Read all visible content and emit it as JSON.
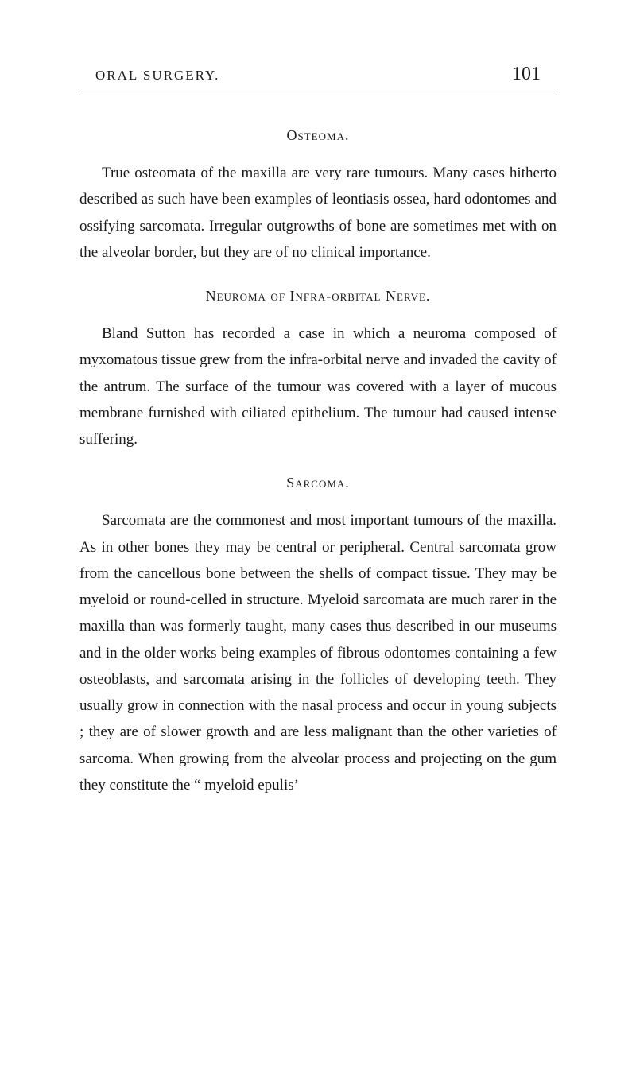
{
  "page": {
    "running_title": "ORAL SURGERY.",
    "page_number": "101"
  },
  "sections": {
    "s1": {
      "heading": "Osteoma.",
      "para1": "True osteomata of the maxilla are very rare tumours. Many cases hitherto described as such have been examples of leontiasis ossea, hard odontomes and ossifying sarcomata. Irregular outgrowths of bone are sometimes met with on the alveolar border, but they are of no clinical importance."
    },
    "s2": {
      "heading": "Neuroma of Infra-orbital Nerve.",
      "para1": "Bland Sutton has recorded a case in which a neuroma composed of myxomatous tissue grew from the infra-orbital nerve and invaded the cavity of the antrum. The surface of the tumour was covered with a layer of mucous membrane furnished with ciliated epithelium. The tumour had caused intense suffering."
    },
    "s3": {
      "heading": "Sarcoma.",
      "para1": "Sarcomata are the commonest and most important tumours of the maxilla. As in other bones they may be central or peripheral. Central sarcomata grow from the cancellous bone between the shells of compact tissue. They may be myeloid or round-celled in structure. Myeloid sarcomata are much rarer in the maxilla than was formerly taught, many cases thus described in our museums and in the older works being examples of fibrous odontomes containing a few osteoblasts, and sarcomata arising in the follicles of developing teeth. They usually grow in connection with the nasal process and occur in young subjects ; they are of slower growth and are less malignant than the other varieties of sarcoma. When growing from the alveolar process and projecting on the gum they constitute the “ myeloid epulis’"
    }
  },
  "style": {
    "background_color": "#ffffff",
    "text_color": "#1a1a1a",
    "body_fontsize": 19,
    "heading_fontsize": 18,
    "page_number_fontsize": 24,
    "running_title_fontsize": 17,
    "line_height": 1.75,
    "font_family": "Georgia, 'Times New Roman', serif"
  }
}
